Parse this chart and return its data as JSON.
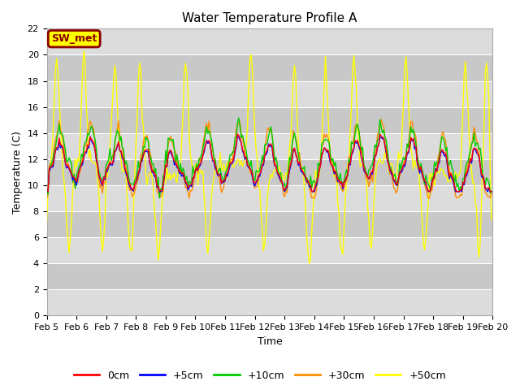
{
  "title": "Water Temperature Profile A",
  "xlabel": "Time",
  "ylabel": "Temperature (C)",
  "ylim": [
    0,
    22
  ],
  "yticks": [
    0,
    2,
    4,
    6,
    8,
    10,
    12,
    14,
    16,
    18,
    20,
    22
  ],
  "xtick_labels": [
    "Feb 5",
    "Feb 6",
    "Feb 7",
    "Feb 8",
    "Feb 9",
    "Feb 10",
    "Feb 11",
    "Feb 12",
    "Feb 13",
    "Feb 14",
    "Feb 15",
    "Feb 16",
    "Feb 17",
    "Feb 18",
    "Feb 19",
    "Feb 20"
  ],
  "annotation_text": "SW_met",
  "annotation_color": "#8B0000",
  "annotation_bg": "#FFFF00",
  "line_colors": [
    "#FF0000",
    "#0000FF",
    "#00CC00",
    "#FF8C00",
    "#FFFF00"
  ],
  "line_labels": [
    "0cm",
    "+5cm",
    "+10cm",
    "+30cm",
    "+50cm"
  ],
  "band_colors": [
    "#DCDCDC",
    "#C8C8C8"
  ],
  "grid_color": "#FFFFFF"
}
